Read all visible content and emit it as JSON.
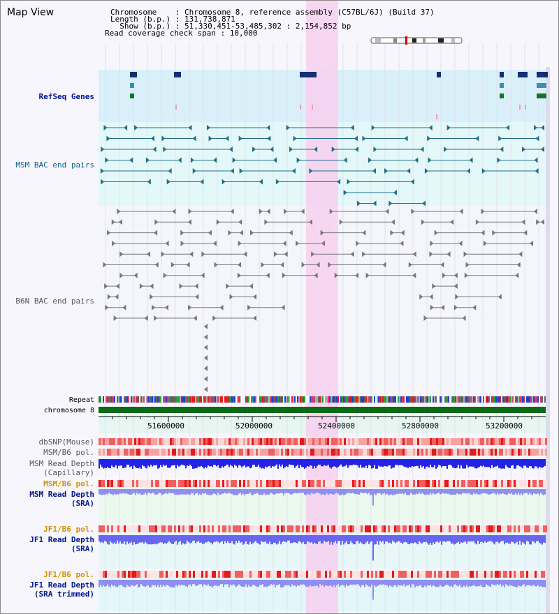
{
  "view": {
    "title": "Map View",
    "info_lines": [
      "Chromosome    : Chromosome 8, reference assembly (C57BL/6J) (Build 37)",
      "Length (b.p.) : 131,738,871",
      "  Show (b.p.) : 51,330,451-53,485,302 : 2,154,852 bp",
      "Read coverage check span : 10,000"
    ]
  },
  "tracks": [
    {
      "label": "RefSeq Genes",
      "color": "#00158a"
    },
    {
      "label": "MSM BAC end pairs",
      "color": "#0a5f86"
    },
    {
      "label": "B6N BAC end pairs",
      "color": "#555555"
    },
    {
      "label": "Repeat",
      "color": "#000000"
    },
    {
      "label": "chromosome 8",
      "color": "#000000"
    },
    {
      "label": "dbSNP(Mouse)",
      "color": "#555555"
    },
    {
      "label": "MSM/B6 pol.",
      "color": "#555555"
    },
    {
      "label": "MSM Read Depth",
      "color": "#555555"
    },
    {
      "label": "(Capillary)",
      "color": "#555555"
    },
    {
      "label": "MSM/B6 pol.",
      "color": "#d49200"
    },
    {
      "label": "MSM Read Depth",
      "color": "#00158a"
    },
    {
      "label": "(SRA)",
      "color": "#00158a"
    },
    {
      "label": "JF1/B6 pol.",
      "color": "#d49200"
    },
    {
      "label": "JF1 Read Depth",
      "color": "#00158a"
    },
    {
      "label": "(SRA)",
      "color": "#00158a"
    },
    {
      "label": "JF1/B6 pol.",
      "color": "#d49200"
    },
    {
      "label": "JF1 Read Depth",
      "color": "#00158a"
    },
    {
      "label": "(SRA trimmed)",
      "color": "#00158a"
    }
  ],
  "axis": {
    "ticks": [
      "51600000",
      "52000000",
      "52400000",
      "52800000",
      "53200000"
    ]
  },
  "highlight": {
    "color": "#f7d0f0"
  }
}
